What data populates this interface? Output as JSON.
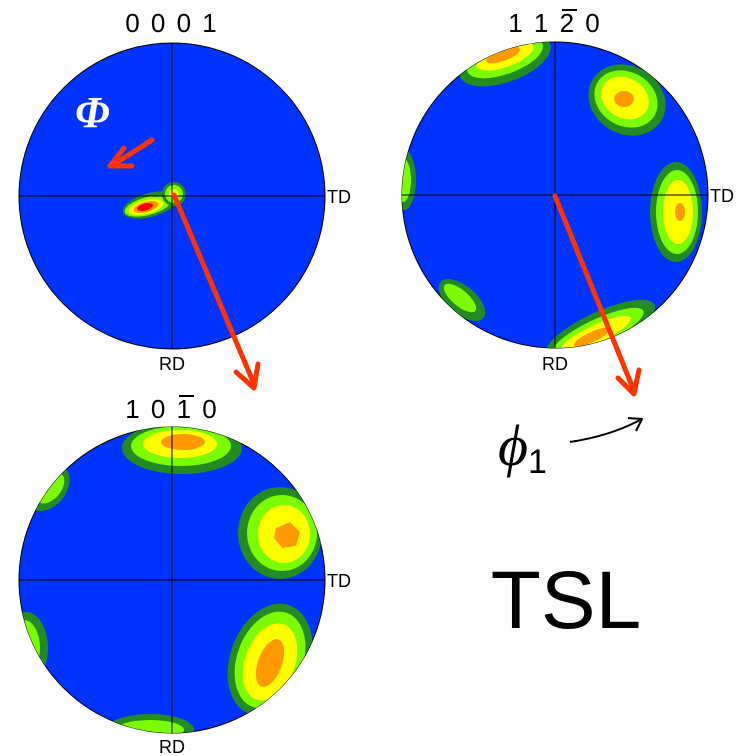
{
  "poles": [
    {
      "id": "p0001",
      "title": "0 0 0 1",
      "overbar_index": null,
      "right_label": "TD",
      "bottom_label": "RD"
    },
    {
      "id": "p11-20",
      "title": "1 1 2 0",
      "overbar_index": 2,
      "right_label": "TD",
      "bottom_label": "RD"
    },
    {
      "id": "p10-10",
      "title": "1 0 1 0",
      "overbar_index": 2,
      "right_label": "TD",
      "bottom_label": "RD"
    }
  ],
  "annotations": {
    "phi_capital": "Φ",
    "phi_one_base": "ϕ",
    "phi_one_sub": "1",
    "software": "TSL"
  },
  "colors": {
    "background": "#0033ff",
    "level1": "#228b22",
    "level2": "#7cfc00",
    "level3": "#ffff00",
    "level4": "#ff9900",
    "level5": "#ff0000",
    "arrow": "#ff3300"
  }
}
